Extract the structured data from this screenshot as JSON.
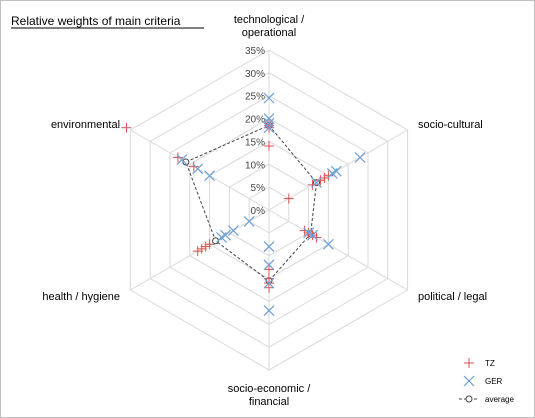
{
  "chart_data": {
    "type": "radar",
    "title": "Relative weights of main criteria",
    "axes": [
      {
        "lines": [
          "technological /",
          "operational"
        ]
      },
      {
        "lines": [
          "socio-cultural"
        ]
      },
      {
        "lines": [
          "political / legal"
        ]
      },
      {
        "lines": [
          "socio-economic /",
          "financial"
        ]
      },
      {
        "lines": [
          "health / hygiene"
        ]
      },
      {
        "lines": [
          "environmental"
        ]
      }
    ],
    "rlim": [
      0,
      35
    ],
    "ticks": [
      "0%",
      "5%",
      "10%",
      "15%",
      "20%",
      "25%",
      "30%",
      "35%"
    ],
    "tick_values": [
      0,
      5,
      10,
      15,
      20,
      25,
      30,
      35
    ],
    "grid": true,
    "legend_position": "bottom-right",
    "series": [
      {
        "name": "TZ",
        "marker": "plus",
        "color": "#e05050",
        "values": [
          [
            14,
            18,
            18.5,
            19
          ],
          [
            5,
            11,
            13,
            14,
            15
          ],
          [
            9,
            10,
            11,
            12
          ],
          [
            13,
            15,
            16,
            17
          ],
          [
            15,
            16,
            17,
            18
          ],
          [
            19,
            23,
            36
          ]
        ]
      },
      {
        "name": "GER",
        "marker": "x",
        "color": "#6f9fd6",
        "values": [
          [
            18,
            19,
            20,
            24.5
          ],
          [
            12,
            16,
            17,
            23
          ],
          [
            10,
            11,
            15
          ],
          [
            8,
            12,
            16,
            22
          ],
          [
            5,
            9,
            11,
            12
          ],
          [
            15,
            18,
            22
          ]
        ]
      },
      {
        "name": "average",
        "marker": "circle",
        "color": "#444444",
        "values": [
          18.5,
          12,
          10.5,
          15.5,
          13.5,
          21
        ]
      }
    ]
  }
}
